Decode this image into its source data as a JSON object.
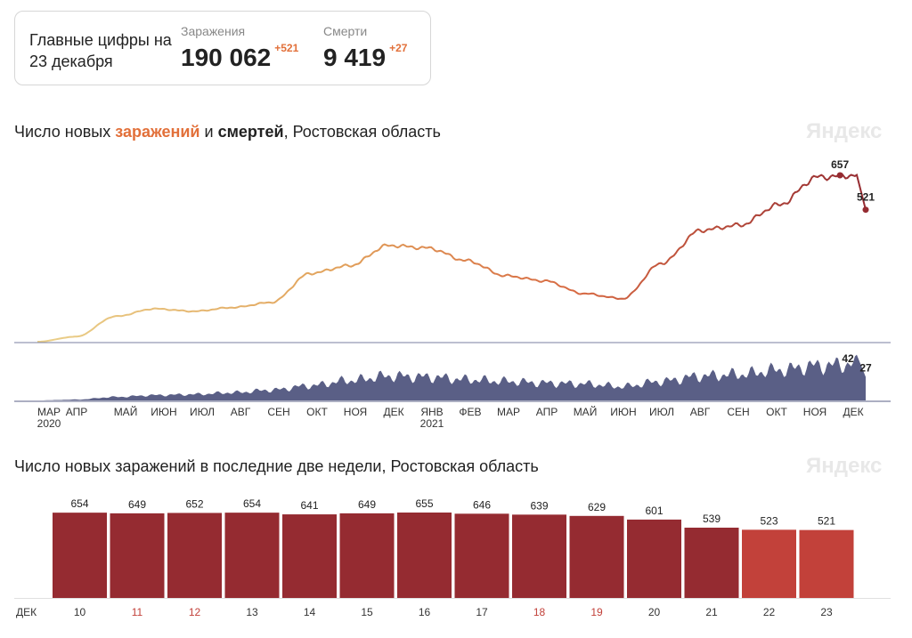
{
  "summary": {
    "title": "Главные цифры на 23 декабря",
    "cases_label": "Заражения",
    "cases_value": "190 062",
    "cases_delta": "+521",
    "deaths_label": "Смерти",
    "deaths_value": "9 419",
    "deaths_delta": "+27"
  },
  "chart1": {
    "title_prefix": "Число новых ",
    "title_infections": "заражений",
    "title_and": " и ",
    "title_deaths": "смертей",
    "title_suffix": ", Ростовская область",
    "watermark": "Яндекс"
  },
  "chart2": {
    "title": "Число новых заражений в последние две недели, Ростовская область",
    "watermark": "Яндекс"
  },
  "chart_data": [
    {
      "type": "line",
      "series": [
        {
          "values_by_month": [
            [
              "2020-03",
              0
            ],
            [
              "2020-04",
              20
            ],
            [
              "2020-05",
              100
            ],
            [
              "2020-06",
              130
            ],
            [
              "2020-07",
              120
            ],
            [
              "2020-08",
              135
            ],
            [
              "2020-09",
              155
            ],
            [
              "2020-10",
              270
            ],
            [
              "2020-11",
              300
            ],
            [
              "2020-12",
              380
            ],
            [
              "2021-01",
              370
            ],
            [
              "2021-02",
              320
            ],
            [
              "2021-03",
              260
            ],
            [
              "2021-04",
              240
            ],
            [
              "2021-05",
              190
            ],
            [
              "2021-06",
              170
            ],
            [
              "2021-07",
              310
            ],
            [
              "2021-08",
              440
            ],
            [
              "2021-09",
              460
            ],
            [
              "2021-10",
              540
            ],
            [
              "2021-11",
              650
            ],
            [
              "2021-12",
              657
            ],
            [
              "2021-12-23",
              521
            ]
          ],
          "peak_label": "657",
          "last_label": "521"
        },
        {
          "values_by_month": [
            [
              "2020-03",
              0
            ],
            [
              "2020-04",
              1
            ],
            [
              "2020-05",
              4
            ],
            [
              "2020-06",
              6
            ],
            [
              "2020-07",
              7
            ],
            [
              "2020-08",
              9
            ],
            [
              "2020-09",
              12
            ],
            [
              "2020-10",
              17
            ],
            [
              "2020-11",
              23
            ],
            [
              "2020-12",
              28
            ],
            [
              "2021-01",
              27
            ],
            [
              "2021-02",
              24
            ],
            [
              "2021-03",
              22
            ],
            [
              "2021-04",
              20
            ],
            [
              "2021-05",
              19
            ],
            [
              "2021-06",
              16
            ],
            [
              "2021-07",
              22
            ],
            [
              "2021-08",
              28
            ],
            [
              "2021-09",
              30
            ],
            [
              "2021-10",
              35
            ],
            [
              "2021-11",
              40
            ],
            [
              "2021-12",
              42
            ],
            [
              "2021-12-23",
              27
            ]
          ],
          "peak_label": "42",
          "last_label": "27"
        }
      ],
      "x_tick_labels": [
        "МАР",
        "АПР",
        "МАЙ",
        "ИЮН",
        "ИЮЛ",
        "АВГ",
        "СЕН",
        "ОКТ",
        "НОЯ",
        "ДЕК",
        "ЯНВ",
        "ФЕВ",
        "МАР",
        "АПР",
        "МАЙ",
        "ИЮН",
        "ИЮЛ",
        "АВГ",
        "СЕН",
        "ОКТ",
        "НОЯ",
        "ДЕК"
      ],
      "year_labels": [
        {
          "tick_index": 0,
          "label": "2020"
        },
        {
          "tick_index": 10,
          "label": "2021"
        }
      ]
    },
    {
      "type": "bar",
      "month_label": "ДЕК",
      "categories": [
        "10",
        "11",
        "12",
        "13",
        "14",
        "15",
        "16",
        "17",
        "18",
        "19",
        "20",
        "21",
        "22",
        "23"
      ],
      "values": [
        654,
        649,
        652,
        654,
        641,
        649,
        655,
        646,
        639,
        629,
        601,
        539,
        523,
        521
      ],
      "weekend_days": [
        "11",
        "12",
        "18",
        "19"
      ],
      "bar_color": "#952b31",
      "recent_bar_color": "#c2413a",
      "weekend_label_color": "#c2413a"
    }
  ]
}
